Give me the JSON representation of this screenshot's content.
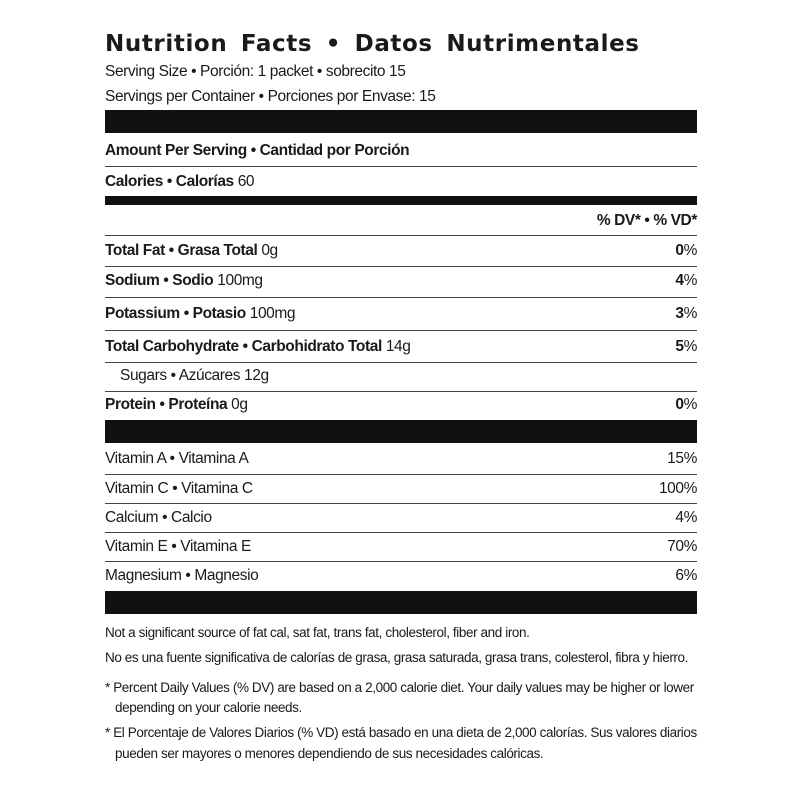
{
  "title": "Nutrition Facts • Datos Nutrimentales",
  "serving_size": "Serving Size • Porción: 1 packet • sobrecito 15",
  "servings_per_container": "Servings per Container • Porciones por Envase: 15",
  "amount_per_serving": "Amount Per Serving • Cantidad por Porción",
  "calories": {
    "label": "Calories • Calorías",
    "value": "60"
  },
  "dv_header": "% DV* • % VD*",
  "nutrients": [
    {
      "label": "Total Fat • Grasa Total",
      "amount": "0g",
      "dv": "0",
      "pct": "%"
    },
    {
      "label": "Sodium • Sodio",
      "amount": "100mg",
      "dv": "4",
      "pct": "%"
    },
    {
      "label": "Potassium • Potasio",
      "amount": "100mg",
      "dv": "3",
      "pct": "%"
    },
    {
      "label": "Total Carbohydrate • Carbohidrato Total",
      "amount": "14g",
      "dv": "5",
      "pct": "%"
    },
    {
      "label": "Sugars • Azúcares",
      "amount": "12g",
      "dv": "",
      "pct": ""
    },
    {
      "label": "Protein • Proteína",
      "amount": "0g",
      "dv": "0",
      "pct": "%"
    }
  ],
  "vitamins": [
    {
      "label": "Vitamin A • Vitamina A",
      "dv": "15%"
    },
    {
      "label": "Vitamin C • Vitamina C",
      "dv": "100%"
    },
    {
      "label": "Calcium • Calcio",
      "dv": "4%"
    },
    {
      "label": "Vitamin E • Vitamina E",
      "dv": "70%"
    },
    {
      "label": "Magnesium • Magnesio",
      "dv": "6%"
    }
  ],
  "footnotes": [
    "Not a significant source of fat cal, sat fat, trans fat, cholesterol, fiber and iron.",
    "No es una fuente significativa de calorías de grasa, grasa saturada, grasa trans, colesterol, fibra y hierro.",
    "* Percent Daily Values (% DV) are based on a 2,000 calorie diet. Your daily values may be higher or lower",
    "depending on your calorie needs.",
    "* El Porcentaje de Valores Diarios (% VD) está basado en una dieta de 2,000 calorías. Sus valores diarios",
    "pueden ser mayores o menores dependiendo de sus necesidades calóricas."
  ]
}
